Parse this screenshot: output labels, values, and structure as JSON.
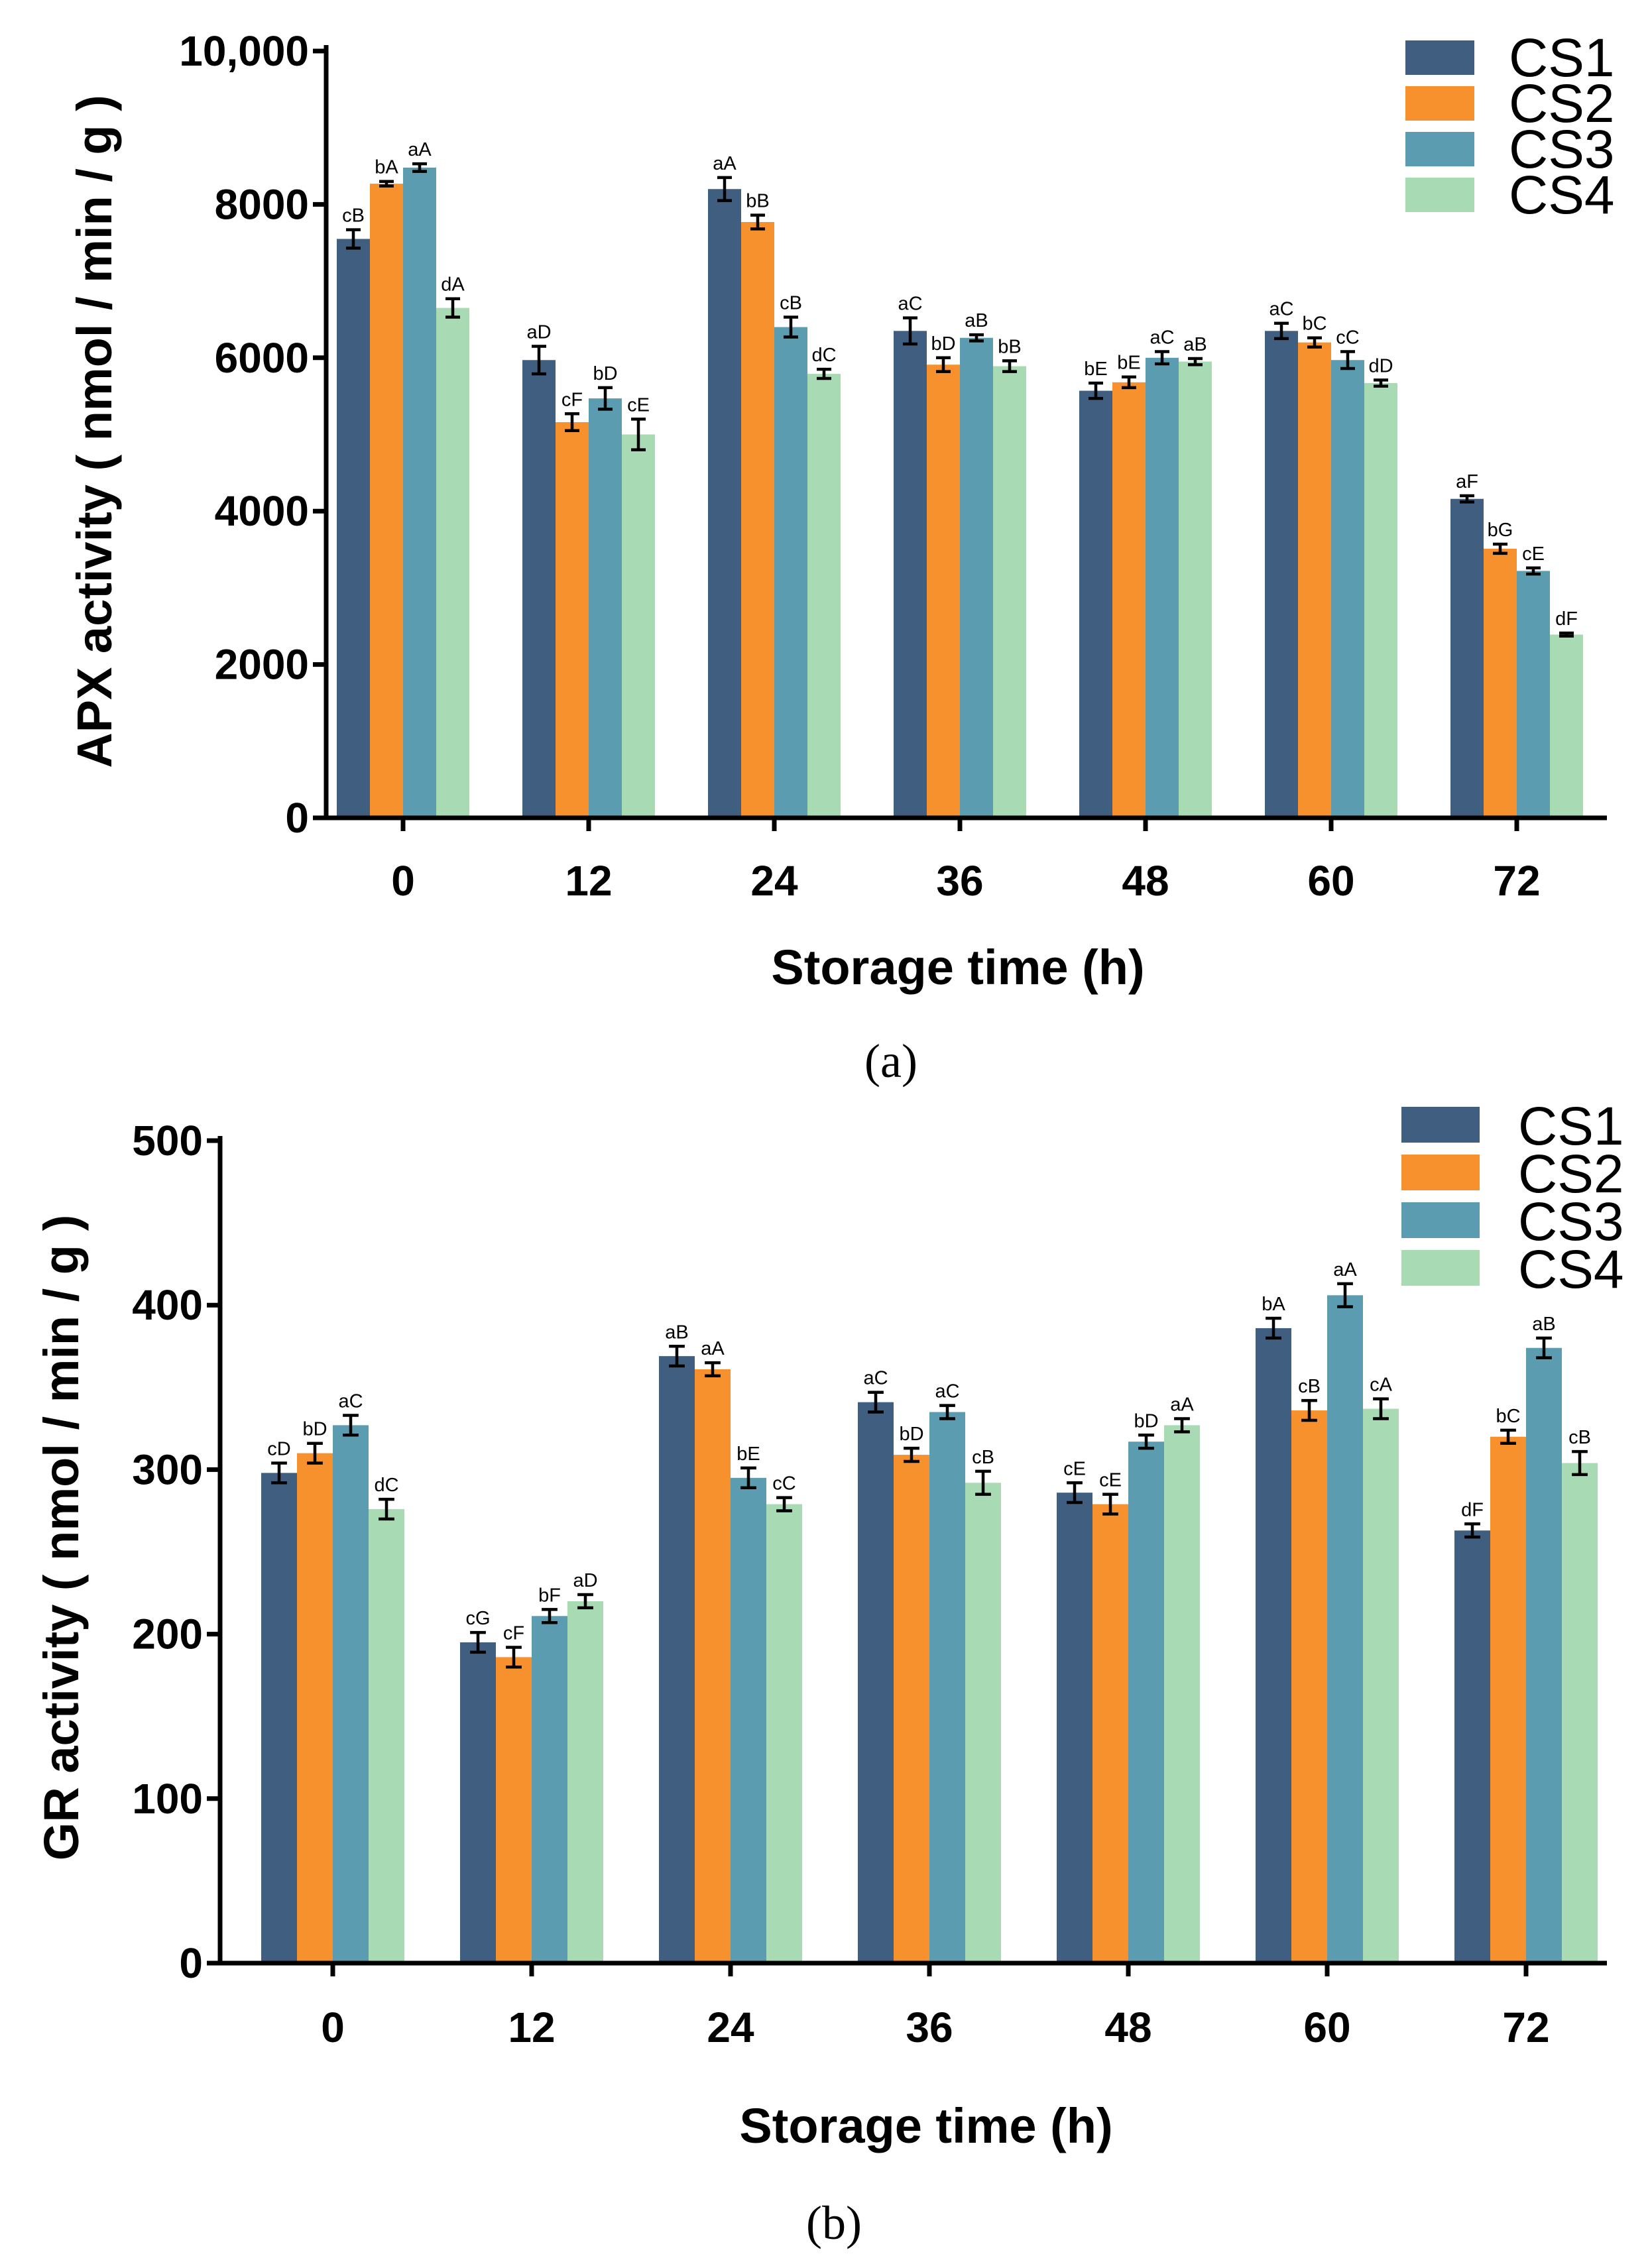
{
  "colors": {
    "CS1": "#3f5e80",
    "CS2": "#f7912e",
    "CS3": "#5b9cb0",
    "CS4": "#a8dbb3"
  },
  "chart_data": [
    {
      "type": "bar",
      "panel_label": "(a)",
      "title": "",
      "xlabel": "Storage time (h)",
      "ylabel": "APX activity ( nmol / min / g )",
      "ylim": [
        0,
        10000
      ],
      "y_ticks": [
        0,
        2000,
        4000,
        6000,
        8000,
        10000
      ],
      "y_tick_labels": [
        "0",
        "2000",
        "4000",
        "6000",
        "8000",
        "10,000"
      ],
      "categories": [
        "0",
        "12",
        "24",
        "36",
        "48",
        "60",
        "72"
      ],
      "legend_position": "top-right",
      "series": [
        {
          "name": "CS1",
          "values": [
            7550,
            5970,
            8200,
            6350,
            5570,
            6350,
            4160
          ],
          "errors": [
            120,
            180,
            150,
            170,
            100,
            100,
            40
          ],
          "labels": [
            "cB",
            "aD",
            "aA",
            "aC",
            "bE",
            "aC",
            "aF"
          ]
        },
        {
          "name": "CS2",
          "values": [
            8270,
            5160,
            7770,
            5910,
            5680,
            6200,
            3510
          ],
          "errors": [
            30,
            110,
            90,
            90,
            70,
            60,
            60
          ],
          "labels": [
            "bA",
            "cF",
            "bB",
            "bD",
            "bE",
            "bC",
            "bG"
          ]
        },
        {
          "name": "CS3",
          "values": [
            8480,
            5470,
            6400,
            6260,
            6000,
            5970,
            3220
          ],
          "errors": [
            50,
            140,
            130,
            40,
            80,
            110,
            40
          ],
          "labels": [
            "aA",
            "bD",
            "cB",
            "aB",
            "aC",
            "cC",
            "cE"
          ]
        },
        {
          "name": "CS4",
          "values": [
            6650,
            5000,
            5790,
            5890,
            5950,
            5670,
            2390
          ],
          "errors": [
            120,
            200,
            60,
            70,
            40,
            40,
            20
          ],
          "labels": [
            "dA",
            "cE",
            "dC",
            "bB",
            "aB",
            "dD",
            "dF"
          ]
        }
      ]
    },
    {
      "type": "bar",
      "panel_label": "(b)",
      "title": "",
      "xlabel": "Storage time (h)",
      "ylabel": "GR activity ( nmol / min / g )",
      "ylim": [
        0,
        500
      ],
      "y_ticks": [
        0,
        100,
        200,
        300,
        400,
        500
      ],
      "y_tick_labels": [
        "0",
        "100",
        "200",
        "300",
        "400",
        "500"
      ],
      "categories": [
        "0",
        "12",
        "24",
        "36",
        "48",
        "60",
        "72"
      ],
      "legend_position": "top-right",
      "series": [
        {
          "name": "CS1",
          "values": [
            298,
            195,
            369,
            341,
            286,
            386,
            263
          ],
          "errors": [
            6,
            6,
            6,
            6,
            6,
            6,
            4
          ],
          "labels": [
            "cD",
            "cG",
            "aB",
            "aC",
            "cE",
            "bA",
            "dF"
          ]
        },
        {
          "name": "CS2",
          "values": [
            310,
            186,
            361,
            309,
            279,
            336,
            320
          ],
          "errors": [
            6,
            6,
            4,
            4,
            6,
            6,
            4
          ],
          "labels": [
            "bD",
            "cF",
            "aA",
            "bD",
            "cE",
            "cB",
            "bC"
          ]
        },
        {
          "name": "CS3",
          "values": [
            327,
            211,
            295,
            335,
            317,
            406,
            374
          ],
          "errors": [
            6,
            4,
            6,
            4,
            4,
            7,
            6
          ],
          "labels": [
            "aC",
            "bF",
            "bE",
            "aC",
            "bD",
            "aA",
            "aB"
          ]
        },
        {
          "name": "CS4",
          "values": [
            276,
            220,
            279,
            292,
            327,
            337,
            304
          ],
          "errors": [
            6,
            4,
            4,
            7,
            4,
            6,
            7
          ],
          "labels": [
            "dC",
            "aD",
            "cC",
            "cB",
            "aA",
            "cA",
            "cB"
          ]
        }
      ]
    }
  ]
}
